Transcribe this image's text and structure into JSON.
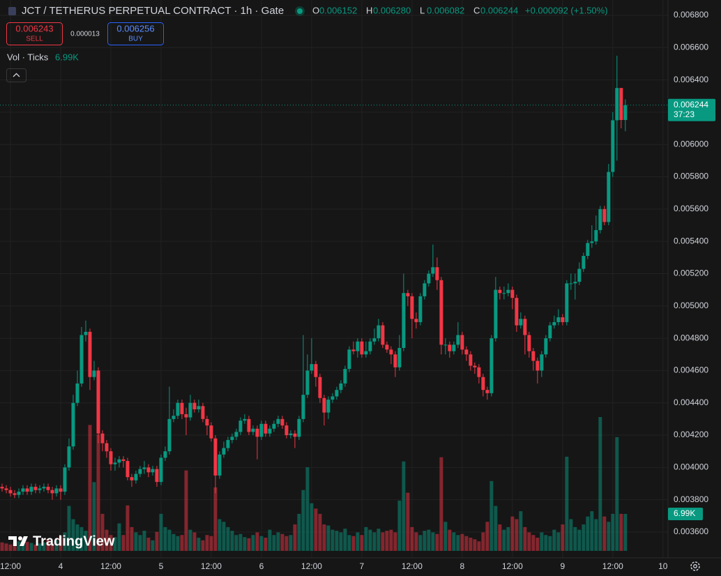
{
  "header": {
    "symbol": "JCT / TETHERUS PERPETUAL CONTRACT · 1h · Gate",
    "ohlc": [
      {
        "key": "O",
        "value": "0.006152"
      },
      {
        "key": "H",
        "value": "0.006280"
      },
      {
        "key": "L",
        "value": "0.006082"
      },
      {
        "key": "C",
        "value": "0.006244"
      }
    ],
    "change": "+0.000092 (+1.50%)"
  },
  "trade": {
    "sell_price": "0.006243",
    "sell": "SELL",
    "spread": "0.000013",
    "buy_price": "0.006256",
    "buy": "BUY"
  },
  "indicator": {
    "name": "Vol · Ticks",
    "value": "6.99K"
  },
  "last_price": {
    "label": "0.006244",
    "countdown": "37:23"
  },
  "watermark": "TradingView",
  "chart_data": {
    "type": "candlestick",
    "up_color": "#089981",
    "down_color": "#f23645",
    "ylim": [
      0.00344,
      0.006895
    ],
    "yticks": [
      {
        "value": 0.0036,
        "label": "0.003600"
      },
      {
        "value": 0.0038,
        "label": "0.003800"
      },
      {
        "value": 0.004,
        "label": "0.004000"
      },
      {
        "value": 0.0042,
        "label": "0.004200"
      },
      {
        "value": 0.0044,
        "label": "0.004400"
      },
      {
        "value": 0.0046,
        "label": "0.004600"
      },
      {
        "value": 0.0048,
        "label": "0.004800"
      },
      {
        "value": 0.005,
        "label": "0.005000"
      },
      {
        "value": 0.0052,
        "label": "0.005200"
      },
      {
        "value": 0.0054,
        "label": "0.005400"
      },
      {
        "value": 0.0056,
        "label": "0.005600"
      },
      {
        "value": 0.0058,
        "label": "0.005800"
      },
      {
        "value": 0.006,
        "label": "0.006000"
      },
      {
        "value": 0.0062,
        "label": "0.006200"
      },
      {
        "value": 0.0064,
        "label": "0.006400"
      },
      {
        "value": 0.0066,
        "label": "0.006600"
      },
      {
        "value": 0.0068,
        "label": "0.006800"
      }
    ],
    "xlim": [
      -0.5,
      159.2
    ],
    "xticks": [
      {
        "value": 2,
        "label": "12:00"
      },
      {
        "value": 14,
        "label": "4"
      },
      {
        "value": 26,
        "label": "12:00"
      },
      {
        "value": 38,
        "label": "5"
      },
      {
        "value": 50,
        "label": "12:00"
      },
      {
        "value": 62,
        "label": "6"
      },
      {
        "value": 74,
        "label": "12:00"
      },
      {
        "value": 86,
        "label": "7"
      },
      {
        "value": 98,
        "label": "12:00"
      },
      {
        "value": 110,
        "label": "8"
      },
      {
        "value": 122,
        "label": "12:00"
      },
      {
        "value": 134,
        "label": "9"
      },
      {
        "value": 146,
        "label": "12:00"
      },
      {
        "value": 158,
        "label": "10"
      }
    ],
    "grid": true,
    "open": [
      0.00388,
      0.00387,
      0.00386,
      0.00384,
      0.00383,
      0.00385,
      0.00387,
      0.00385,
      0.00388,
      0.00386,
      0.00387,
      0.00388,
      0.00386,
      0.00384,
      0.00387,
      0.00385,
      0.004,
      0.00413,
      0.0044,
      0.00452,
      0.00482,
      0.00484,
      0.00456,
      0.0046,
      0.00421,
      0.00415,
      0.0041,
      0.00402,
      0.00403,
      0.00405,
      0.00404,
      0.00394,
      0.00392,
      0.00396,
      0.00399,
      0.004,
      0.00397,
      0.00399,
      0.00391,
      0.00406,
      0.0041,
      0.0043,
      0.00432,
      0.0044,
      0.00433,
      0.00431,
      0.0044,
      0.00436,
      0.00438,
      0.0043,
      0.00426,
      0.00418,
      0.00395,
      0.00408,
      0.00412,
      0.00417,
      0.00419,
      0.00422,
      0.00429,
      0.0043,
      0.00422,
      0.00424,
      0.00419,
      0.00427,
      0.00421,
      0.00424,
      0.00427,
      0.0043,
      0.00426,
      0.0042,
      0.00421,
      0.00419,
      0.0043,
      0.00445,
      0.0046,
      0.00464,
      0.00456,
      0.00443,
      0.00434,
      0.00442,
      0.00444,
      0.00448,
      0.00452,
      0.00461,
      0.00473,
      0.00472,
      0.00478,
      0.0047,
      0.00472,
      0.00478,
      0.0048,
      0.00488,
      0.00476,
      0.00473,
      0.0047,
      0.00462,
      0.00474,
      0.00508,
      0.00506,
      0.00492,
      0.0049,
      0.00506,
      0.00514,
      0.0052,
      0.00524,
      0.00516,
      0.00476,
      0.00476,
      0.00472,
      0.00476,
      0.00482,
      0.00473,
      0.0047,
      0.00463,
      0.00462,
      0.00456,
      0.00448,
      0.00446,
      0.0048,
      0.0051,
      0.00508,
      0.00508,
      0.0051,
      0.00505,
      0.00488,
      0.00492,
      0.00482,
      0.00472,
      0.00466,
      0.0046,
      0.0047,
      0.0048,
      0.00488,
      0.0049,
      0.00493,
      0.0049,
      0.00514,
      0.00514,
      0.00515,
      0.00523,
      0.00531,
      0.00539,
      0.0054,
      0.00547,
      0.0056,
      0.00552,
      0.00583,
      0.00615,
      0.00635,
      0.006152
    ],
    "high": [
      0.0039,
      0.00389,
      0.00388,
      0.00386,
      0.00387,
      0.00389,
      0.00389,
      0.0039,
      0.0039,
      0.00389,
      0.0039,
      0.0039,
      0.00388,
      0.00389,
      0.00389,
      0.00402,
      0.00418,
      0.00445,
      0.0046,
      0.00487,
      0.00491,
      0.00486,
      0.00466,
      0.00462,
      0.00423,
      0.00417,
      0.00412,
      0.00406,
      0.00407,
      0.00407,
      0.00406,
      0.00396,
      0.00398,
      0.00401,
      0.00404,
      0.00402,
      0.00401,
      0.00401,
      0.00408,
      0.00413,
      0.0045,
      0.00436,
      0.00442,
      0.00442,
      0.00437,
      0.00445,
      0.00442,
      0.00442,
      0.0044,
      0.00432,
      0.00428,
      0.0042,
      0.0041,
      0.00416,
      0.00419,
      0.00421,
      0.00424,
      0.00431,
      0.00433,
      0.00432,
      0.00426,
      0.00426,
      0.00429,
      0.00429,
      0.00426,
      0.00429,
      0.00432,
      0.00432,
      0.00428,
      0.00423,
      0.00423,
      0.00432,
      0.00482,
      0.0047,
      0.0048,
      0.00466,
      0.00458,
      0.00445,
      0.00444,
      0.00446,
      0.0045,
      0.00454,
      0.00463,
      0.00475,
      0.00478,
      0.0048,
      0.0048,
      0.00478,
      0.0048,
      0.00486,
      0.00492,
      0.0049,
      0.00478,
      0.00475,
      0.00472,
      0.00482,
      0.0052,
      0.0051,
      0.00508,
      0.00496,
      0.00508,
      0.00516,
      0.00522,
      0.00538,
      0.0053,
      0.00518,
      0.0048,
      0.00478,
      0.00478,
      0.0049,
      0.00484,
      0.00475,
      0.00472,
      0.00465,
      0.00464,
      0.00458,
      0.0045,
      0.00482,
      0.00518,
      0.00512,
      0.00512,
      0.00514,
      0.00512,
      0.00507,
      0.00496,
      0.00494,
      0.00484,
      0.00474,
      0.00468,
      0.00472,
      0.00482,
      0.0049,
      0.00494,
      0.00498,
      0.00495,
      0.00516,
      0.0052,
      0.0052,
      0.00527,
      0.00533,
      0.00541,
      0.0055,
      0.00556,
      0.00562,
      0.00562,
      0.00588,
      0.0062,
      0.00655,
      0.00635,
      0.00628
    ],
    "low": [
      0.00385,
      0.00384,
      0.00382,
      0.00381,
      0.00381,
      0.00383,
      0.00383,
      0.00383,
      0.00384,
      0.00384,
      0.00385,
      0.00384,
      0.0038,
      0.00382,
      0.0038,
      0.00383,
      0.00398,
      0.00411,
      0.00438,
      0.0045,
      0.00478,
      0.00448,
      0.00454,
      0.00415,
      0.0041,
      0.00406,
      0.00398,
      0.00398,
      0.004,
      0.004,
      0.00392,
      0.00388,
      0.0039,
      0.00394,
      0.00396,
      0.00394,
      0.00395,
      0.00388,
      0.00389,
      0.00404,
      0.00408,
      0.00428,
      0.0043,
      0.0043,
      0.0042,
      0.00429,
      0.00434,
      0.00434,
      0.00428,
      0.0042,
      0.00416,
      0.00384,
      0.00393,
      0.00406,
      0.0041,
      0.00415,
      0.00417,
      0.0042,
      0.00427,
      0.0042,
      0.0042,
      0.00405,
      0.00417,
      0.00419,
      0.00419,
      0.00422,
      0.00425,
      0.00424,
      0.00418,
      0.00418,
      0.00412,
      0.00417,
      0.00428,
      0.00443,
      0.00458,
      0.0045,
      0.0044,
      0.00426,
      0.0043,
      0.0044,
      0.00442,
      0.00446,
      0.0045,
      0.00459,
      0.0047,
      0.00468,
      0.00468,
      0.00468,
      0.0047,
      0.00476,
      0.00478,
      0.00474,
      0.00471,
      0.00464,
      0.00456,
      0.0046,
      0.00472,
      0.005,
      0.0048,
      0.00486,
      0.00488,
      0.00504,
      0.00512,
      0.00518,
      0.0051,
      0.0047,
      0.0047,
      0.00468,
      0.0047,
      0.00474,
      0.0047,
      0.00466,
      0.0046,
      0.00458,
      0.00452,
      0.00444,
      0.00442,
      0.00444,
      0.00478,
      0.00504,
      0.00504,
      0.00506,
      0.00498,
      0.00484,
      0.00486,
      0.0047,
      0.00468,
      0.0046,
      0.00452,
      0.00456,
      0.00468,
      0.00478,
      0.00486,
      0.00488,
      0.00488,
      0.00488,
      0.0051,
      0.00504,
      0.00513,
      0.00521,
      0.00529,
      0.00536,
      0.00538,
      0.00545,
      0.0055,
      0.0055,
      0.0058,
      0.0059,
      0.0061,
      0.006082
    ],
    "close": [
      0.00387,
      0.00386,
      0.00384,
      0.00383,
      0.00385,
      0.00387,
      0.00385,
      0.00388,
      0.00386,
      0.00387,
      0.00388,
      0.00386,
      0.00384,
      0.00387,
      0.00385,
      0.004,
      0.00413,
      0.0044,
      0.00452,
      0.00482,
      0.00484,
      0.00456,
      0.0046,
      0.00421,
      0.00415,
      0.0041,
      0.00402,
      0.00403,
      0.00405,
      0.00404,
      0.00394,
      0.00392,
      0.00396,
      0.00399,
      0.004,
      0.00397,
      0.00399,
      0.00391,
      0.00406,
      0.0041,
      0.0043,
      0.00432,
      0.0044,
      0.00433,
      0.00431,
      0.0044,
      0.00436,
      0.00438,
      0.0043,
      0.00426,
      0.00418,
      0.00395,
      0.00408,
      0.00412,
      0.00417,
      0.00419,
      0.00422,
      0.00429,
      0.0043,
      0.00422,
      0.00424,
      0.00419,
      0.00427,
      0.00421,
      0.00424,
      0.00427,
      0.0043,
      0.00426,
      0.0042,
      0.00421,
      0.00419,
      0.0043,
      0.00445,
      0.0046,
      0.00464,
      0.00456,
      0.00443,
      0.00434,
      0.00442,
      0.00444,
      0.00448,
      0.00452,
      0.00461,
      0.00473,
      0.00472,
      0.00478,
      0.0047,
      0.00472,
      0.00478,
      0.0048,
      0.00488,
      0.00476,
      0.00473,
      0.0047,
      0.00462,
      0.00474,
      0.00508,
      0.00506,
      0.00492,
      0.0049,
      0.00506,
      0.00514,
      0.0052,
      0.00524,
      0.00516,
      0.00476,
      0.00476,
      0.00472,
      0.00476,
      0.00482,
      0.00473,
      0.0047,
      0.00463,
      0.00462,
      0.00456,
      0.00448,
      0.00446,
      0.0048,
      0.0051,
      0.00508,
      0.00508,
      0.0051,
      0.00505,
      0.00488,
      0.00492,
      0.00482,
      0.00472,
      0.00466,
      0.0046,
      0.0047,
      0.0048,
      0.00488,
      0.0049,
      0.00493,
      0.0049,
      0.00514,
      0.00514,
      0.00515,
      0.00523,
      0.00531,
      0.00539,
      0.0054,
      0.00547,
      0.0056,
      0.00552,
      0.00583,
      0.00615,
      0.00635,
      0.006152,
      0.006244
    ],
    "volume": [
      1600,
      1400,
      1200,
      1500,
      1800,
      1300,
      1700,
      1500,
      1200,
      1400,
      1600,
      2200,
      1500,
      2000,
      2800,
      3500,
      8500,
      6000,
      5000,
      4500,
      3800,
      23800,
      13000,
      22000,
      7000,
      4000,
      3000,
      2600,
      5200,
      3000,
      8600,
      4500,
      3500,
      3000,
      3800,
      2500,
      2000,
      3600,
      7000,
      4500,
      4000,
      3200,
      2800,
      3000,
      15200,
      4000,
      3500,
      2500,
      2000,
      3000,
      2800,
      12000,
      6000,
      5500,
      4500,
      3800,
      3000,
      3200,
      2600,
      2400,
      3000,
      3500,
      2800,
      2500,
      4000,
      3000,
      3500,
      3200,
      2800,
      3000,
      5000,
      7000,
      11500,
      15800,
      9000,
      8000,
      7000,
      5000,
      4800,
      4000,
      3800,
      3500,
      4200,
      3000,
      2800,
      3500,
      3000,
      4500,
      4000,
      3500,
      4200,
      3500,
      3800,
      4000,
      3500,
      9500,
      16900,
      11000,
      4500,
      3500,
      3000,
      3800,
      4000,
      3500,
      3200,
      17700,
      5500,
      4000,
      3500,
      3000,
      3200,
      2800,
      2500,
      2200,
      1800,
      3500,
      5500,
      13200,
      8500,
      5000,
      4000,
      4500,
      6500,
      6000,
      7500,
      4500,
      3500,
      3000,
      2500,
      3500,
      3000,
      2800,
      4000,
      3500,
      5000,
      17800,
      6000,
      4500,
      4000,
      5000,
      6500,
      7500,
      6000,
      25300,
      6500,
      5500,
      7000,
      21500,
      7000,
      6990
    ],
    "volume_label": "6.99K"
  }
}
